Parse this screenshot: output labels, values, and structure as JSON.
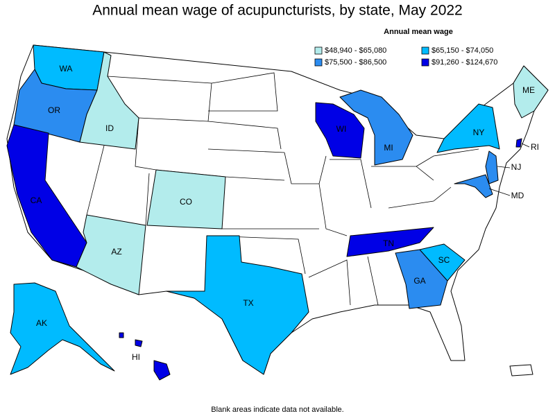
{
  "title": "Annual mean wage of acupuncturists, by state, May 2022",
  "legend": {
    "title": "Annual mean wage",
    "items": [
      {
        "label": "$48,940 - $65,080",
        "color": "#b3ecec"
      },
      {
        "label": "$65,150 - $74,050",
        "color": "#00bbff"
      },
      {
        "label": "$75,500 - $86,500",
        "color": "#2b8cf0"
      },
      {
        "label": "$91,260 - $124,670",
        "color": "#0000e6"
      }
    ]
  },
  "states": [
    {
      "label": "WA",
      "legend_item": 1
    },
    {
      "label": "OR",
      "legend_item": 2
    },
    {
      "label": "ID",
      "legend_item": 0
    },
    {
      "label": "CA",
      "legend_item": 3
    },
    {
      "label": "AZ",
      "legend_item": 0
    },
    {
      "label": "CO",
      "legend_item": 0
    },
    {
      "label": "TX",
      "legend_item": 1
    },
    {
      "label": "AK",
      "legend_item": 1
    },
    {
      "label": "HI",
      "legend_item": 3
    },
    {
      "label": "WI",
      "legend_item": 3
    },
    {
      "label": "MI",
      "legend_item": 2
    },
    {
      "label": "TN",
      "legend_item": 3
    },
    {
      "label": "GA",
      "legend_item": 2
    },
    {
      "label": "SC",
      "legend_item": 1
    },
    {
      "label": "NY",
      "legend_item": 1
    },
    {
      "label": "ME",
      "legend_item": 0
    },
    {
      "label": "NJ",
      "legend_item": 2
    },
    {
      "label": "MD",
      "legend_item": 2
    },
    {
      "label": "RI",
      "legend_item": 3
    }
  ],
  "note": "Blank areas indicate data not available."
}
